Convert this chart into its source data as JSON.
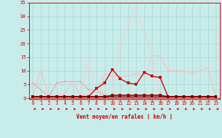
{
  "xlabel": "Vent moyen/en rafales ( km/h )",
  "xlim_min": -0.5,
  "xlim_max": 23.5,
  "ylim_min": -0.5,
  "ylim_max": 35,
  "yticks": [
    0,
    5,
    10,
    15,
    20,
    25,
    30,
    35
  ],
  "xticks": [
    0,
    1,
    2,
    3,
    4,
    5,
    6,
    7,
    8,
    9,
    10,
    11,
    12,
    13,
    14,
    15,
    16,
    17,
    18,
    19,
    20,
    21,
    22,
    23
  ],
  "bg_color": "#c8ecea",
  "grid_color": "#a8d4d2",
  "series": [
    {
      "x": [
        0,
        1,
        2,
        3,
        4,
        5,
        6,
        7,
        8,
        9,
        10,
        11,
        12,
        13,
        14,
        15,
        16,
        17,
        18,
        19,
        20,
        21,
        22,
        23
      ],
      "y": [
        5.5,
        3.0,
        0.5,
        5.5,
        6.0,
        6.0,
        6.0,
        3.0,
        3.0,
        1.0,
        0.5,
        0.5,
        0.5,
        0.5,
        0.5,
        0.5,
        0.5,
        0.5,
        0.5,
        0.5,
        0.5,
        0.5,
        0.5,
        0.5
      ],
      "color": "#ff9999",
      "lw": 0.8,
      "ms": 2.0
    },
    {
      "x": [
        0,
        1,
        2,
        3,
        4,
        5,
        6,
        7,
        8,
        9,
        10,
        11,
        12,
        13,
        14,
        15,
        16,
        17,
        18,
        19,
        20,
        21,
        22,
        23
      ],
      "y": [
        0.5,
        10.5,
        0.5,
        1.0,
        1.5,
        6.0,
        1.0,
        1.0,
        0.5,
        9.0,
        8.0,
        8.0,
        8.0,
        9.0,
        8.0,
        15.5,
        15.5,
        10.0,
        10.0,
        10.0,
        9.0,
        10.0,
        11.0,
        0.5
      ],
      "color": "#ffbbbb",
      "lw": 0.8,
      "ms": 2.0
    },
    {
      "x": [
        0,
        1,
        2,
        3,
        4,
        5,
        6,
        7,
        8,
        9,
        10,
        11,
        12,
        13,
        14,
        15,
        16,
        17,
        18,
        19,
        20,
        21,
        22,
        23
      ],
      "y": [
        0.5,
        0.5,
        0.5,
        0.5,
        0.5,
        0.5,
        0.5,
        13.5,
        3.0,
        3.0,
        3.0,
        19.5,
        27.5,
        31.5,
        24.5,
        15.5,
        0.5,
        0.5,
        0.5,
        0.5,
        0.5,
        0.5,
        0.5,
        0.5
      ],
      "color": "#ffcccc",
      "lw": 0.8,
      "ms": 2.0
    },
    {
      "x": [
        0,
        1,
        2,
        3,
        4,
        5,
        6,
        7,
        8,
        9,
        10,
        11,
        12,
        13,
        14,
        15,
        16,
        17,
        18,
        19,
        20,
        21,
        22,
        23
      ],
      "y": [
        0.5,
        0.5,
        0.5,
        0.5,
        0.5,
        0.5,
        0.5,
        0.5,
        3.5,
        5.5,
        10.5,
        7.0,
        5.5,
        5.0,
        9.5,
        8.0,
        7.5,
        0.5,
        0.5,
        0.5,
        0.5,
        0.5,
        0.5,
        0.5
      ],
      "color": "#cc0000",
      "lw": 1.0,
      "ms": 2.5
    },
    {
      "x": [
        0,
        1,
        2,
        3,
        4,
        5,
        6,
        7,
        8,
        9,
        10,
        11,
        12,
        13,
        14,
        15,
        16,
        17,
        18,
        19,
        20,
        21,
        22,
        23
      ],
      "y": [
        0.5,
        0.5,
        0.5,
        0.5,
        0.5,
        0.5,
        0.5,
        0.5,
        0.5,
        0.5,
        1.0,
        1.0,
        1.0,
        1.0,
        1.0,
        1.0,
        1.0,
        0.5,
        0.5,
        0.5,
        0.5,
        0.5,
        0.5,
        0.5
      ],
      "color": "#990000",
      "lw": 1.2,
      "ms": 2.5
    },
    {
      "x": [
        0,
        1,
        2,
        3,
        4,
        5,
        6,
        7,
        8,
        9,
        10,
        11,
        12,
        13,
        14,
        15,
        16,
        17,
        18,
        19,
        20,
        21,
        22,
        23
      ],
      "y": [
        0.5,
        0.5,
        0.5,
        0.5,
        0.5,
        0.5,
        0.5,
        0.5,
        0.5,
        0.5,
        0.5,
        0.5,
        0.5,
        0.5,
        0.5,
        0.5,
        0.5,
        0.5,
        0.5,
        0.5,
        0.5,
        0.5,
        0.5,
        0.5
      ],
      "color": "#660000",
      "lw": 1.0,
      "ms": 2.0
    }
  ],
  "label_color": "#cc0000",
  "tick_color": "#cc0000",
  "spine_color": "#cc0000",
  "axhline_color": "#cc0000",
  "arrow_color": "#cc0000"
}
